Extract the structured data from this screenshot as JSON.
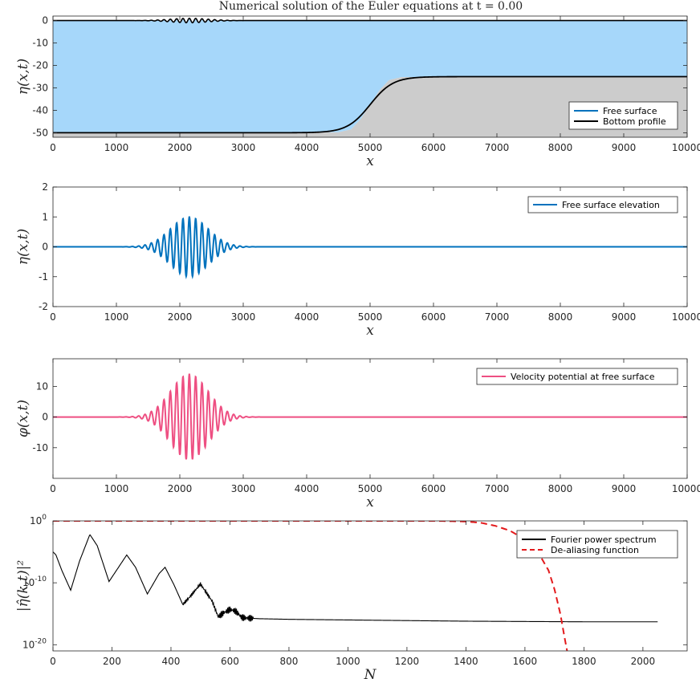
{
  "figure": {
    "title": "Numerical solution of the Euler equations at t = 0.00"
  },
  "colors": {
    "free_surface": "#0072BD",
    "water_fill": "#a6d7fa",
    "bottom_fill": "#cccccc",
    "bottom_line": "#000000",
    "velocity": "#ee4f82",
    "spectrum": "#000000",
    "dealias": "#e31a1c"
  },
  "chart_data": [
    {
      "type": "area",
      "xlabel": "x",
      "ylabel": "η(x,t)",
      "xlim": [
        0,
        10000
      ],
      "ylim": [
        -50,
        2
      ],
      "xticks": [
        0,
        1000,
        2000,
        3000,
        4000,
        5000,
        6000,
        7000,
        8000,
        9000,
        10000
      ],
      "yticks": [
        0,
        -10,
        -20,
        -30,
        -40,
        -50
      ],
      "legend": {
        "position": "bottom-right",
        "entries": [
          "Free surface",
          "Bottom profile"
        ]
      },
      "series": [
        {
          "name": "Free surface",
          "note_shape": "wave packet centered near x=2150, amplitude 1",
          "x": [
            0,
            10000
          ],
          "y": [
            0,
            0
          ]
        },
        {
          "name": "Bottom profile",
          "x": [
            0,
            4500,
            4700,
            4850,
            5000,
            5150,
            5300,
            5500,
            10000
          ],
          "y": [
            -50,
            -49.8,
            -48.5,
            -44,
            -37.5,
            -31,
            -26.5,
            -25.2,
            -25
          ]
        }
      ]
    },
    {
      "type": "line",
      "xlabel": "x",
      "ylabel": "η(x,t)",
      "xlim": [
        0,
        10000
      ],
      "ylim": [
        -2,
        2
      ],
      "xticks": [
        0,
        1000,
        2000,
        3000,
        4000,
        5000,
        6000,
        7000,
        8000,
        9000,
        10000
      ],
      "yticks": [
        2,
        1,
        0,
        -1,
        -2
      ],
      "legend": {
        "position": "top-right",
        "entries": [
          "Free surface elevation"
        ]
      },
      "series": [
        {
          "name": "Free surface elevation",
          "packet": {
            "center": 2150,
            "width": 420,
            "wavelength": 100,
            "amplitude": 1.0
          }
        }
      ]
    },
    {
      "type": "line",
      "xlabel": "x",
      "ylabel": "φ(x,t)",
      "xlim": [
        0,
        10000
      ],
      "ylim": [
        -20,
        19
      ],
      "xticks": [
        0,
        1000,
        2000,
        3000,
        4000,
        5000,
        6000,
        7000,
        8000,
        9000,
        10000
      ],
      "yticks": [
        10,
        0,
        -10
      ],
      "legend": {
        "position": "top-right",
        "entries": [
          "Velocity potential at free surface"
        ]
      },
      "series": [
        {
          "name": "Velocity potential at free surface",
          "packet": {
            "center": 2150,
            "width": 420,
            "wavelength": 100,
            "amplitude": 14
          }
        }
      ]
    },
    {
      "type": "line",
      "yscale": "log",
      "xlabel": "N",
      "ylabel": "|η̂(k,t)|²",
      "xlim": [
        0,
        2150
      ],
      "ylim_log10": [
        -21,
        0
      ],
      "xticks": [
        0,
        200,
        400,
        600,
        800,
        1000,
        1200,
        1400,
        1600,
        1800,
        2000
      ],
      "yticks": [
        "10^0",
        "10^-10",
        "10^-20"
      ],
      "legend": {
        "position": "top-right",
        "entries": [
          "Fourier power spectrum",
          "De-aliasing function"
        ]
      },
      "series": [
        {
          "name": "Fourier power spectrum",
          "x": [
            0,
            10,
            30,
            60,
            90,
            125,
            150,
            190,
            250,
            280,
            320,
            360,
            380,
            410,
            440,
            460,
            500,
            540,
            560,
            580,
            600,
            620,
            640,
            660,
            700,
            800,
            1000,
            1200,
            1400,
            1600,
            1800,
            2050
          ],
          "log10_y": [
            -5,
            -5.5,
            -8,
            -11.2,
            -6.5,
            -2.2,
            -4,
            -9.8,
            -5.5,
            -7.5,
            -11.8,
            -8.5,
            -7.5,
            -10.3,
            -13.5,
            -12.5,
            -10.2,
            -13,
            -15.5,
            -14.8,
            -14.3,
            -14.6,
            -15.6,
            -15.7,
            -15.8,
            -15.9,
            -16.0,
            -16.1,
            -16.2,
            -16.25,
            -16.3,
            -16.3
          ]
        },
        {
          "name": "De-aliasing function",
          "x": [
            0,
            1300,
            1400,
            1450,
            1500,
            1550,
            1600,
            1650,
            1680,
            1700,
            1720,
            1735,
            1745
          ],
          "log10_y": [
            0,
            0,
            -0.1,
            -0.3,
            -0.8,
            -1.6,
            -3,
            -5.5,
            -8,
            -11,
            -15,
            -19,
            -21.5
          ]
        }
      ]
    }
  ]
}
